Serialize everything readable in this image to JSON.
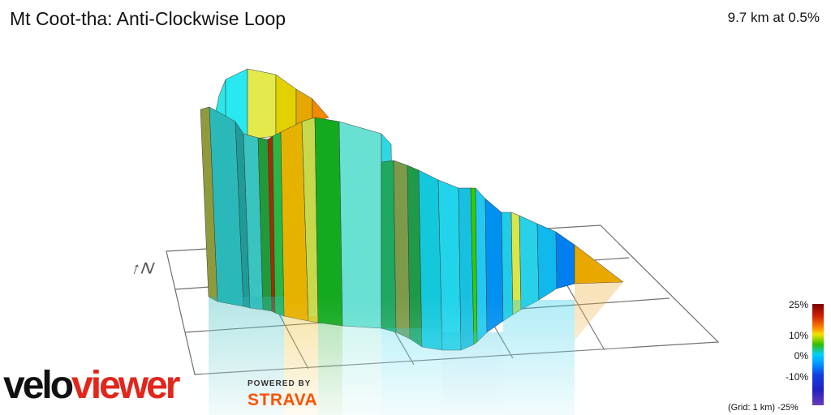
{
  "header": {
    "title": "Mt Coot-tha: Anti-Clockwise Loop",
    "summary": "9.7 km at 0.5%"
  },
  "compass": {
    "label": "↑N"
  },
  "legend": {
    "labels": [
      "25%",
      "10%",
      "0%",
      "-10%"
    ],
    "grid_note": "(Grid: 1 km)",
    "bottom_label": "-25%"
  },
  "branding": {
    "logo_part1": "velo",
    "logo_part2": "viewer",
    "powered_by": "POWERED BY",
    "strava": "STRAVA"
  },
  "colors": {
    "gradient_25": "#7a0000",
    "gradient_10": "#f4e300",
    "gradient_0": "#2fbf00",
    "gradient_neg10": "#00d0ff",
    "gradient_neg25": "#6a3cb8",
    "brand_red": "#e1261c",
    "strava_orange": "#fc5200"
  }
}
